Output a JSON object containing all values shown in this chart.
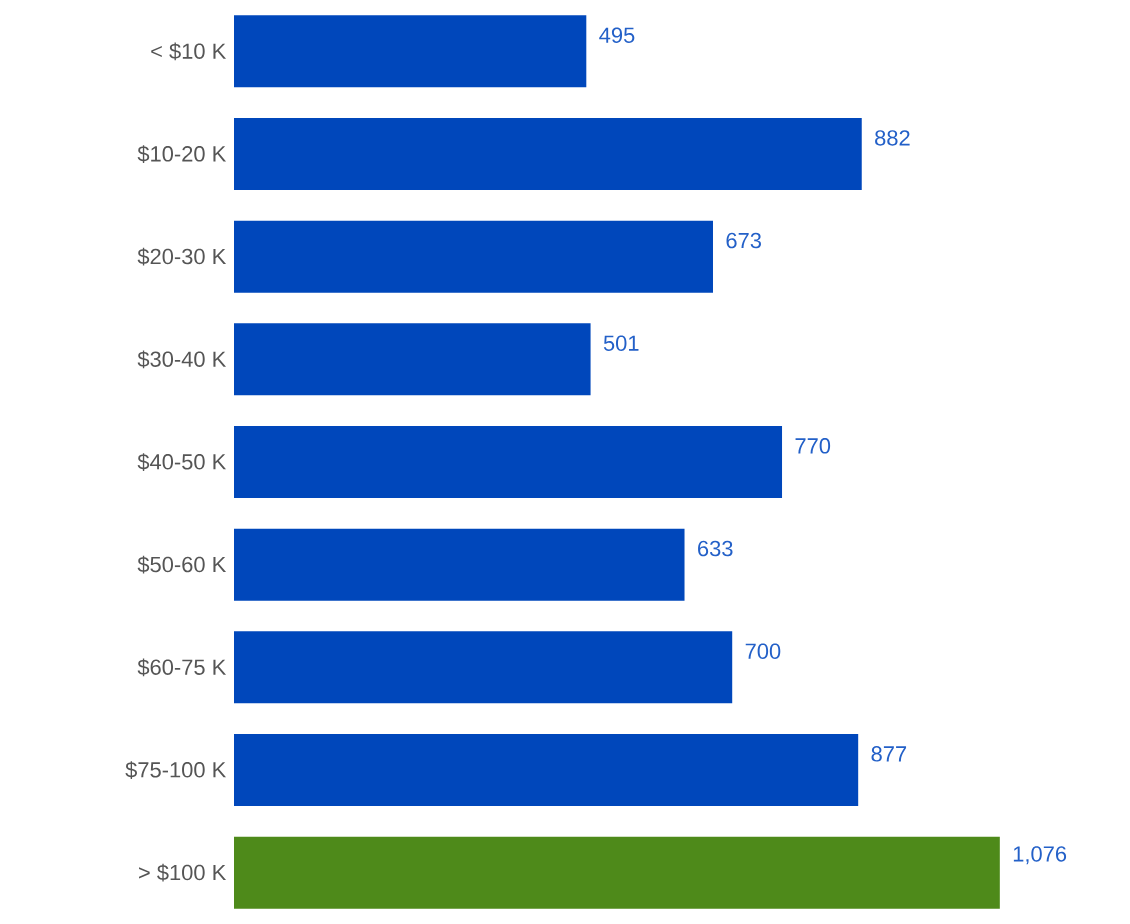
{
  "chart_data": {
    "type": "bar",
    "orientation": "horizontal",
    "categories": [
      "< $10 K",
      "$10-20 K",
      "$20-30 K",
      "$30-40 K",
      "$40-50 K",
      "$50-60 K",
      "$60-75 K",
      "$75-100 K",
      "> $100 K"
    ],
    "values": [
      495,
      882,
      673,
      501,
      770,
      633,
      700,
      877,
      1076
    ],
    "colors": [
      "#0047bb",
      "#0047bb",
      "#0047bb",
      "#0047bb",
      "#0047bb",
      "#0047bb",
      "#0047bb",
      "#0047bb",
      "#4e8a1a"
    ],
    "value_labels": [
      "495",
      "882",
      "673",
      "501",
      "770",
      "633",
      "700",
      "877",
      "1,076"
    ]
  }
}
